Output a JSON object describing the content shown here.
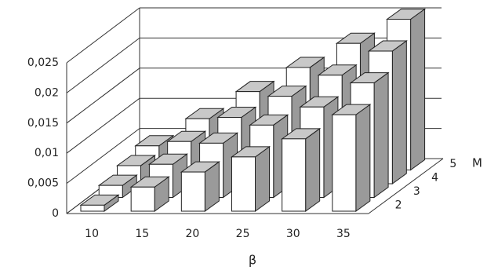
{
  "chart_data": {
    "type": "bar3d",
    "x_label": "β",
    "z_label": "M",
    "categories": [
      "10",
      "15",
      "20",
      "25",
      "30",
      "35"
    ],
    "series": [
      {
        "name": "2",
        "values": [
          0.001,
          0.004,
          0.0065,
          0.009,
          0.012,
          0.016
        ]
      },
      {
        "name": "3",
        "values": [
          0.002,
          0.0055,
          0.009,
          0.012,
          0.015,
          0.019
        ]
      },
      {
        "name": "4",
        "values": [
          0.003,
          0.007,
          0.011,
          0.0145,
          0.018,
          0.022
        ]
      },
      {
        "name": "5",
        "values": [
          0.004,
          0.0085,
          0.013,
          0.017,
          0.021,
          0.025
        ]
      }
    ],
    "ylim": [
      0,
      0.025
    ],
    "yticks": [
      0,
      {
        "value": 0.005,
        "label": "0,005"
      },
      {
        "value": 0.01,
        "label": "0,01"
      },
      {
        "value": 0.015,
        "label": "0,015"
      },
      {
        "value": 0.02,
        "label": "0,02"
      },
      {
        "value": 0.025,
        "label": "0,025"
      }
    ],
    "colors": {
      "front": "#ffffff",
      "top": "#c8c8c8",
      "side": "#9a9a9a"
    }
  }
}
